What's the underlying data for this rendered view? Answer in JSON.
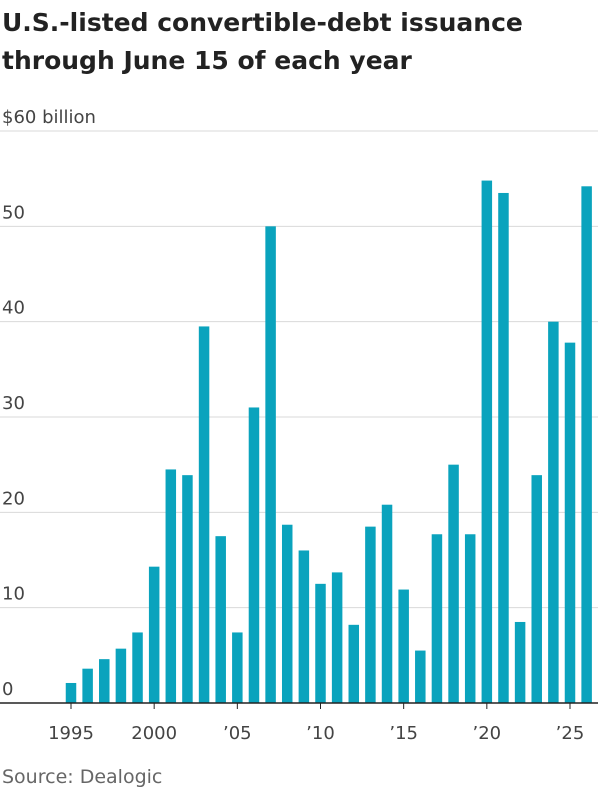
{
  "title_lines": [
    "U.S.-listed convertible-debt issuance",
    "through June 15 of each year"
  ],
  "source": "Source: Dealogic",
  "colors": {
    "bar": "#0aa3bd",
    "grid": "#d9d9d9",
    "axis": "#222222",
    "text": "#444444"
  },
  "chart_data": {
    "type": "bar",
    "x": [
      1995,
      1996,
      1997,
      1998,
      1999,
      2000,
      2001,
      2002,
      2003,
      2004,
      2005,
      2006,
      2007,
      2008,
      2009,
      2010,
      2011,
      2012,
      2013,
      2014,
      2015,
      2016,
      2017,
      2018,
      2019,
      2020,
      2021,
      2022,
      2023,
      2024,
      2025
    ],
    "values": [
      2.1,
      3.6,
      4.6,
      5.7,
      7.4,
      14.3,
      24.5,
      23.9,
      39.5,
      17.5,
      7.4,
      31.0,
      50.0,
      18.7,
      16.0,
      12.5,
      13.7,
      8.2,
      18.5,
      20.8,
      11.9,
      5.5,
      17.7,
      25.0,
      17.7,
      54.8,
      53.5,
      8.5,
      23.9,
      40.0,
      37.8
    ],
    "extra_bar": {
      "x": 2026,
      "value": 54.2
    },
    "ylim": [
      0,
      60
    ],
    "yticks": [
      0,
      10,
      20,
      30,
      40,
      50,
      60
    ],
    "ytick_labels": [
      "0",
      "10",
      "20",
      "30",
      "40",
      "50",
      "$60 billion"
    ],
    "xticks": [
      1995,
      2000,
      2005,
      2010,
      2015,
      2020,
      2025
    ],
    "xtick_labels": [
      "1995",
      "2000",
      "’05",
      "’10",
      "’15",
      "’20",
      "’25"
    ],
    "xlim": [
      1994,
      2026.6
    ],
    "grid": true
  }
}
